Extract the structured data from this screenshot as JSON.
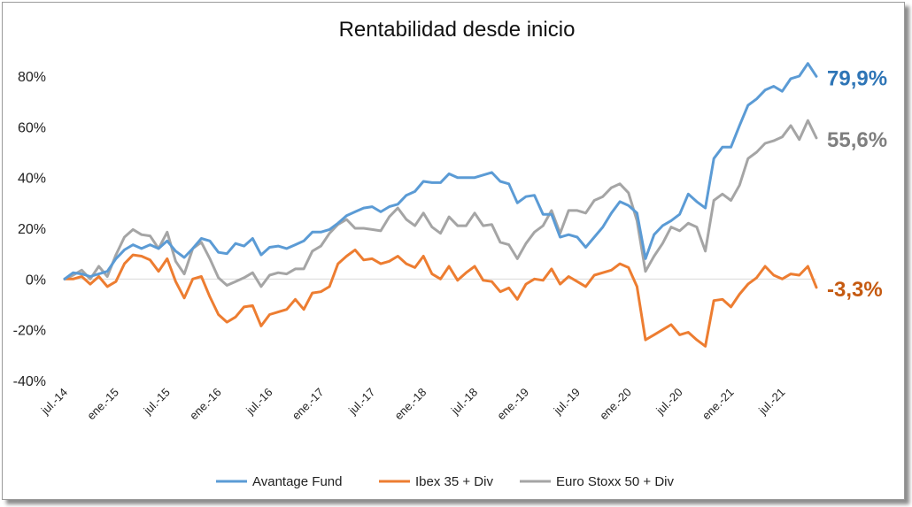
{
  "chart_data": {
    "type": "line",
    "title": "Rentabilidad desde inicio",
    "xlabel": "",
    "ylabel": "",
    "ylim": [
      -40,
      80
    ],
    "y_ticks": [
      "80%",
      "60%",
      "40%",
      "20%",
      "0%",
      "-20%",
      "-40%"
    ],
    "y_tick_values": [
      80,
      60,
      40,
      20,
      0,
      -20,
      -40
    ],
    "x_ticks": [
      "jul.-14",
      "ene.-15",
      "jul.-15",
      "ene.-16",
      "jul.-16",
      "ene.-17",
      "jul.-17",
      "ene.-18",
      "jul.-18",
      "ene.-19",
      "jul.-19",
      "ene.-20",
      "jul.-20",
      "ene.-21",
      "jul.-21"
    ],
    "x_tick_index": [
      0,
      6,
      12,
      18,
      24,
      30,
      36,
      42,
      48,
      54,
      60,
      66,
      72,
      78,
      84
    ],
    "grid": false,
    "legend": "bottom",
    "series": [
      {
        "name": "Avantage Fund",
        "color": "#5b9bd5",
        "end_label": "79,9%",
        "values": [
          0,
          2.5,
          2,
          1,
          2,
          3,
          8,
          11.5,
          13.5,
          12,
          13.5,
          12,
          15,
          11,
          8.5,
          12,
          16,
          15,
          10.5,
          10,
          14,
          13,
          16,
          9.5,
          12.5,
          13,
          12,
          13.5,
          15,
          18.5,
          18.5,
          19.5,
          22,
          25,
          26.5,
          28,
          28.5,
          26.5,
          28.5,
          29.5,
          33,
          34.5,
          38.5,
          38,
          38,
          41.5,
          40,
          40,
          40,
          41,
          42,
          38.5,
          37.5,
          30,
          32.5,
          33,
          25.5,
          25.5,
          16.5,
          17.5,
          16.5,
          12.5,
          16.5,
          20.5,
          26,
          30.5,
          29,
          26,
          8,
          17.5,
          21,
          23,
          25.5,
          33.5,
          30.5,
          28,
          47.5,
          52,
          52,
          60.5,
          68.5,
          71,
          74.5,
          76,
          74,
          79,
          80,
          85,
          79.9
        ]
      },
      {
        "name": "Ibex 35 + Div",
        "color": "#ed7d31",
        "end_label": "-3,3%",
        "values": [
          0,
          0,
          1,
          -2,
          1,
          -3,
          -1,
          6,
          9.5,
          9,
          7.5,
          3,
          8,
          -1,
          -7.5,
          0,
          1,
          -7,
          -14,
          -17,
          -15,
          -11,
          -10.5,
          -18.5,
          -14,
          -13,
          -12,
          -8,
          -12,
          -5.5,
          -5,
          -3,
          6,
          9,
          11.5,
          7.5,
          8,
          6,
          7,
          9,
          6,
          4.5,
          9,
          2,
          0,
          5,
          -0.5,
          2.5,
          5,
          -0.5,
          -1,
          -5,
          -3.5,
          -8,
          -2,
          0,
          -0.5,
          4,
          -2,
          1,
          -1,
          -3,
          1.5,
          2.5,
          3.5,
          6,
          4.5,
          -3,
          -24,
          -22,
          -20,
          -18,
          -22,
          -21,
          -24,
          -26.5,
          -8.5,
          -8,
          -11,
          -6,
          -2,
          0.5,
          5,
          1.5,
          0,
          2,
          1.5,
          5,
          -3.3
        ]
      },
      {
        "name": "Euro Stoxx 50 + Div",
        "color": "#a5a5a5",
        "end_label": "55,6%",
        "values": [
          0,
          1.5,
          3.5,
          0,
          5,
          1,
          9.5,
          16.5,
          19.5,
          17.5,
          17,
          12,
          18.5,
          7,
          2,
          12,
          14.5,
          8,
          0.5,
          -2.5,
          -1,
          0.5,
          2.5,
          -3,
          1.5,
          2.5,
          2,
          4,
          4,
          11,
          13,
          18,
          21.5,
          23.5,
          20,
          20,
          19.5,
          19,
          24.5,
          28,
          23.5,
          21,
          26,
          20.5,
          18,
          24.5,
          21,
          21,
          26,
          21,
          21.5,
          14.5,
          13.5,
          8,
          14,
          18.5,
          21,
          27,
          18,
          27,
          27,
          26,
          31,
          32.5,
          36,
          37.5,
          34,
          23,
          3,
          9,
          14,
          20.5,
          19,
          22,
          20.5,
          11,
          31,
          33.5,
          31,
          37,
          47.5,
          50,
          53.5,
          54.5,
          56,
          60.5,
          55,
          62.5,
          55.6
        ]
      }
    ]
  }
}
